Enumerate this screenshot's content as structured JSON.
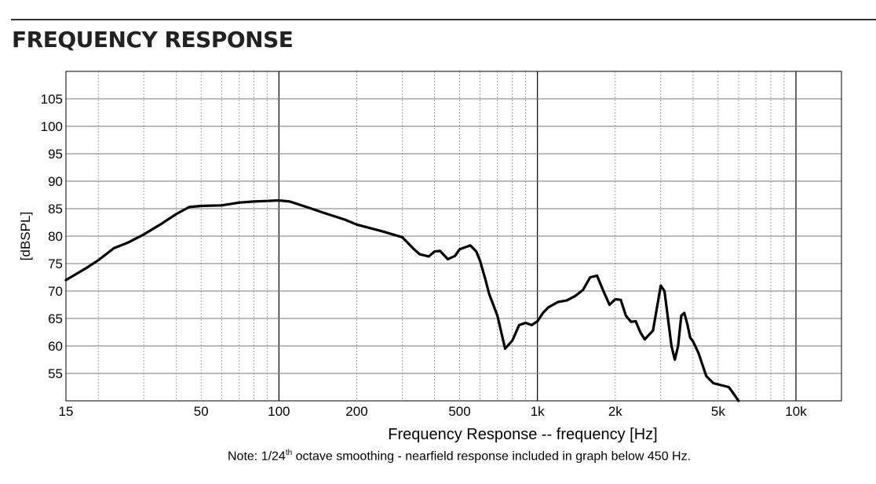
{
  "page": {
    "title": "FREQUENCY RESPONSE",
    "note_prefix": "Note: 1/24",
    "note_sup": "th",
    "note_suffix": " octave smoothing - nearfield response included in graph below 450 Hz."
  },
  "chart_data": {
    "type": "line",
    "title": "",
    "xlabel": "Frequency Response -- frequency [Hz]",
    "ylabel": "[dBSPL]",
    "xscale": "log",
    "xlim": [
      15,
      15000
    ],
    "ylim": [
      50,
      110
    ],
    "grid": true,
    "x_ticks": [
      {
        "value": 15,
        "label": "15"
      },
      {
        "value": 50,
        "label": "50"
      },
      {
        "value": 100,
        "label": "100"
      },
      {
        "value": 200,
        "label": "200"
      },
      {
        "value": 500,
        "label": "500"
      },
      {
        "value": 1000,
        "label": "1k"
      },
      {
        "value": 2000,
        "label": "2k"
      },
      {
        "value": 5000,
        "label": "5k"
      },
      {
        "value": 10000,
        "label": "10k"
      }
    ],
    "y_ticks": [
      105,
      100,
      95,
      90,
      85,
      80,
      75,
      70,
      65,
      60,
      55
    ],
    "series": [
      {
        "color": "#000000",
        "x": [
          15,
          18,
          20,
          23,
          26,
          30,
          35,
          40,
          45,
          50,
          60,
          70,
          80,
          90,
          100,
          110,
          130,
          150,
          180,
          200,
          250,
          300,
          330,
          350,
          380,
          400,
          420,
          450,
          480,
          500,
          550,
          580,
          600,
          630,
          650,
          700,
          750,
          800,
          850,
          900,
          950,
          1000,
          1050,
          1100,
          1200,
          1300,
          1400,
          1500,
          1600,
          1700,
          1800,
          1900,
          2000,
          2100,
          2200,
          2300,
          2400,
          2500,
          2600,
          2800,
          3000,
          3100,
          3200,
          3300,
          3400,
          3500,
          3600,
          3700,
          3800,
          3900,
          4000,
          4200,
          4500,
          4800,
          5000,
          5500,
          5800,
          6000
        ],
        "y": [
          72,
          74.2,
          75.6,
          77.8,
          78.8,
          80.3,
          82.2,
          84,
          85.3,
          85.5,
          85.6,
          86.1,
          86.3,
          86.4,
          86.5,
          86.3,
          85.2,
          84.2,
          83,
          82.1,
          80.9,
          79.8,
          77.8,
          76.7,
          76.3,
          77.2,
          77.3,
          75.8,
          76.4,
          77.6,
          78.3,
          77.2,
          75.5,
          72,
          69.5,
          65.5,
          59.5,
          61,
          63.8,
          64.2,
          63.8,
          64.5,
          66,
          67,
          68,
          68.3,
          69.1,
          70.2,
          72.5,
          72.8,
          70,
          67.5,
          68.5,
          68.4,
          65.5,
          64.4,
          64.5,
          62.5,
          61.2,
          62.8,
          71,
          70,
          65,
          60,
          57.5,
          60,
          65.5,
          66,
          64,
          61.5,
          60.8,
          58.7,
          54.5,
          53.2,
          53,
          52.5,
          51,
          50
        ]
      }
    ]
  }
}
